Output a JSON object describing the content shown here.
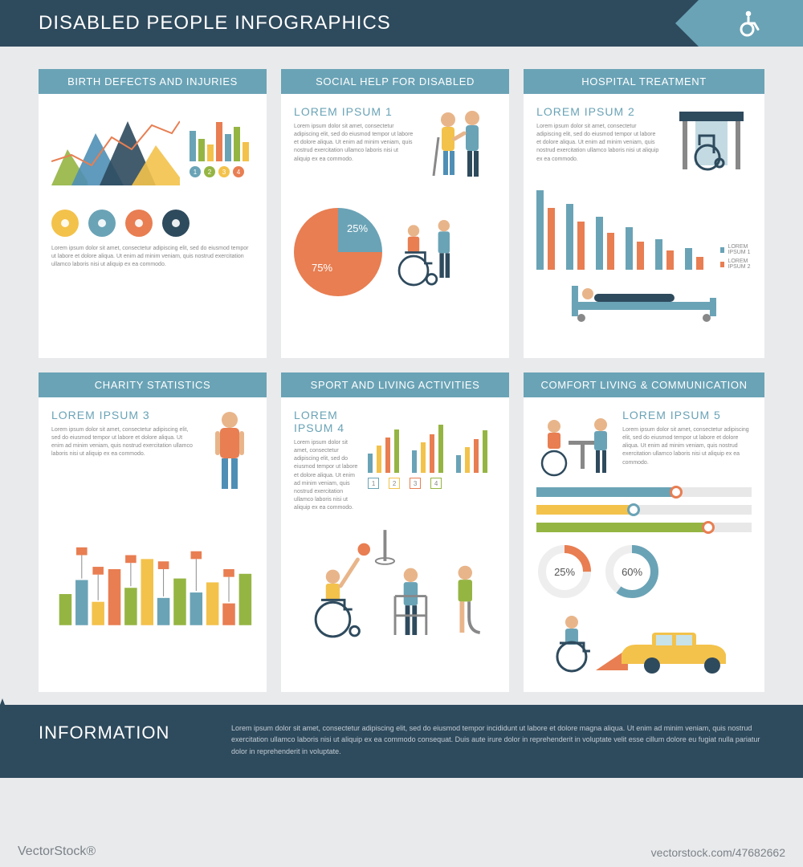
{
  "colors": {
    "header_bg": "#2e4a5d",
    "teal": "#6aa3b6",
    "orange": "#e87e52",
    "yellow": "#f3c24b",
    "green": "#95b543",
    "blue": "#4f8fb5",
    "grey_text": "#888888",
    "page_bg": "#e9eaec",
    "white": "#ffffff"
  },
  "header": {
    "title": "DISABLED PEOPLE INFOGRAPHICS"
  },
  "lorem_small": "Lorem ipsum dolor sit amet, consectetur adipiscing elit, sed do eiusmod tempor ut labore et dolore aliqua. Ut enim ad minim veniam, quis nostrud exercitation ullamco laboris nisi ut aliquip ex ea commodo.",
  "cards": {
    "birth": {
      "title": "BIRTH DEFECTS AND  INJURIES",
      "area_chart": {
        "type": "area+line",
        "width": 160,
        "height": 110,
        "areas": [
          {
            "color": "#95b543",
            "points": [
              [
                0,
                100
              ],
              [
                20,
                55
              ],
              [
                45,
                95
              ],
              [
                45,
                100
              ]
            ]
          },
          {
            "color": "#4f8fb5",
            "points": [
              [
                25,
                100
              ],
              [
                55,
                35
              ],
              [
                90,
                100
              ]
            ]
          },
          {
            "color": "#2e4a5d",
            "points": [
              [
                60,
                100
              ],
              [
                95,
                20
              ],
              [
                130,
                100
              ]
            ]
          },
          {
            "color": "#f3c24b",
            "points": [
              [
                100,
                100
              ],
              [
                130,
                50
              ],
              [
                160,
                90
              ],
              [
                160,
                100
              ]
            ]
          }
        ],
        "line": {
          "color": "#e87e52",
          "points": [
            [
              0,
              70
            ],
            [
              25,
              62
            ],
            [
              50,
              75
            ],
            [
              75,
              40
            ],
            [
              100,
              55
            ],
            [
              125,
              25
            ],
            [
              150,
              35
            ],
            [
              160,
              20
            ]
          ]
        }
      },
      "mini_bars": {
        "values": [
          55,
          40,
          30,
          70,
          48,
          62,
          35
        ],
        "colors": [
          "#6aa3b6",
          "#95b543",
          "#f3c24b",
          "#e87e52",
          "#6aa3b6",
          "#95b543",
          "#f3c24b"
        ]
      },
      "num_legend": [
        {
          "n": "1",
          "c": "#6aa3b6"
        },
        {
          "n": "2",
          "c": "#95b543"
        },
        {
          "n": "3",
          "c": "#f3c24b"
        },
        {
          "n": "4",
          "c": "#e87e52"
        }
      ],
      "circle_icons": [
        {
          "bg": "#f3c24b",
          "name": "ear-icon"
        },
        {
          "bg": "#6aa3b6",
          "name": "glasses-icon"
        },
        {
          "bg": "#e87e52",
          "name": "brain-icon"
        },
        {
          "bg": "#2e4a5d",
          "name": "eye-icon"
        }
      ]
    },
    "social": {
      "title": "SOCIAL HELP FOR DISABLED",
      "heading": "LOREM IPSUM 1",
      "pie": {
        "type": "pie",
        "slices": [
          {
            "label": "75%",
            "value": 75,
            "color": "#e87e52"
          },
          {
            "label": "25%",
            "value": 25,
            "color": "#6aa3b6"
          }
        ]
      }
    },
    "hospital": {
      "title": "HOSPITAL TREATMENT",
      "heading": "LOREM IPSUM 2",
      "bars": {
        "type": "grouped-bar",
        "groups": [
          [
            90,
            70
          ],
          [
            75,
            55
          ],
          [
            60,
            42
          ],
          [
            48,
            32
          ],
          [
            35,
            22
          ],
          [
            25,
            15
          ]
        ],
        "colors": [
          "#6aa3b6",
          "#e87e52"
        ]
      },
      "legend": [
        {
          "label": "LOREM IPSUM 1",
          "c": "#6aa3b6"
        },
        {
          "label": "LOREM IPSUM 2",
          "c": "#e87e52"
        }
      ]
    },
    "charity": {
      "title": "CHARITY STATISTICS",
      "heading": "LOREM IPSUM 3",
      "bars": {
        "type": "bar",
        "values": [
          40,
          58,
          30,
          72,
          48,
          85,
          35,
          60,
          42,
          55,
          28,
          66
        ],
        "colors": [
          "#95b543",
          "#6aa3b6",
          "#f3c24b",
          "#e87e52",
          "#95b543",
          "#f3c24b",
          "#6aa3b6",
          "#95b543",
          "#6aa3b6",
          "#f3c24b",
          "#e87e52",
          "#95b543"
        ],
        "markers": [
          null,
          80,
          55,
          null,
          70,
          null,
          62,
          null,
          75,
          null,
          52,
          null
        ],
        "marker_color": "#e87e52"
      }
    },
    "sport": {
      "title": "SPORT AND LIVING  ACTIVITIES",
      "heading": "LOREM IPSUM 4",
      "bars": {
        "type": "grouped-bar",
        "groups": [
          [
            30,
            42,
            55,
            68
          ],
          [
            35,
            48,
            60,
            75
          ],
          [
            28,
            40,
            52,
            66
          ]
        ],
        "colors": [
          "#6aa3b6",
          "#f3c24b",
          "#e87e52",
          "#95b543"
        ]
      },
      "num_legend": [
        {
          "n": "1",
          "c": "#6aa3b6"
        },
        {
          "n": "2",
          "c": "#f3c24b"
        },
        {
          "n": "3",
          "c": "#e87e52"
        },
        {
          "n": "4",
          "c": "#95b543"
        }
      ]
    },
    "comfort": {
      "title": "COMFORT LIVING & COMMUNICATION",
      "heading": "LOREM IPSUM 5",
      "sliders": [
        {
          "pct": 65,
          "fill": "#6aa3b6",
          "knob": "#e87e52"
        },
        {
          "pct": 45,
          "fill": "#f3c24b",
          "knob": "#6aa3b6"
        },
        {
          "pct": 80,
          "fill": "#95b543",
          "knob": "#e87e52"
        }
      ],
      "donuts": [
        {
          "pct": 25,
          "color": "#e87e52"
        },
        {
          "pct": 60,
          "color": "#6aa3b6"
        }
      ]
    }
  },
  "footer": {
    "title": "INFORMATION",
    "body": "Lorem ipsum dolor sit amet, consectetur adipiscing elit, sed do eiusmod tempor incididunt ut labore et dolore magna aliqua. Ut enim ad minim veniam, quis nostrud exercitation ullamco laboris nisi ut aliquip ex ea commodo consequat. Duis aute irure dolor in reprehenderit in voluptate velit esse cillum dolore eu fugiat nulla pariatur dolor in reprehenderit in voluptate."
  },
  "watermark": "VectorStock®",
  "image_id": "vectorstock.com/47682662"
}
